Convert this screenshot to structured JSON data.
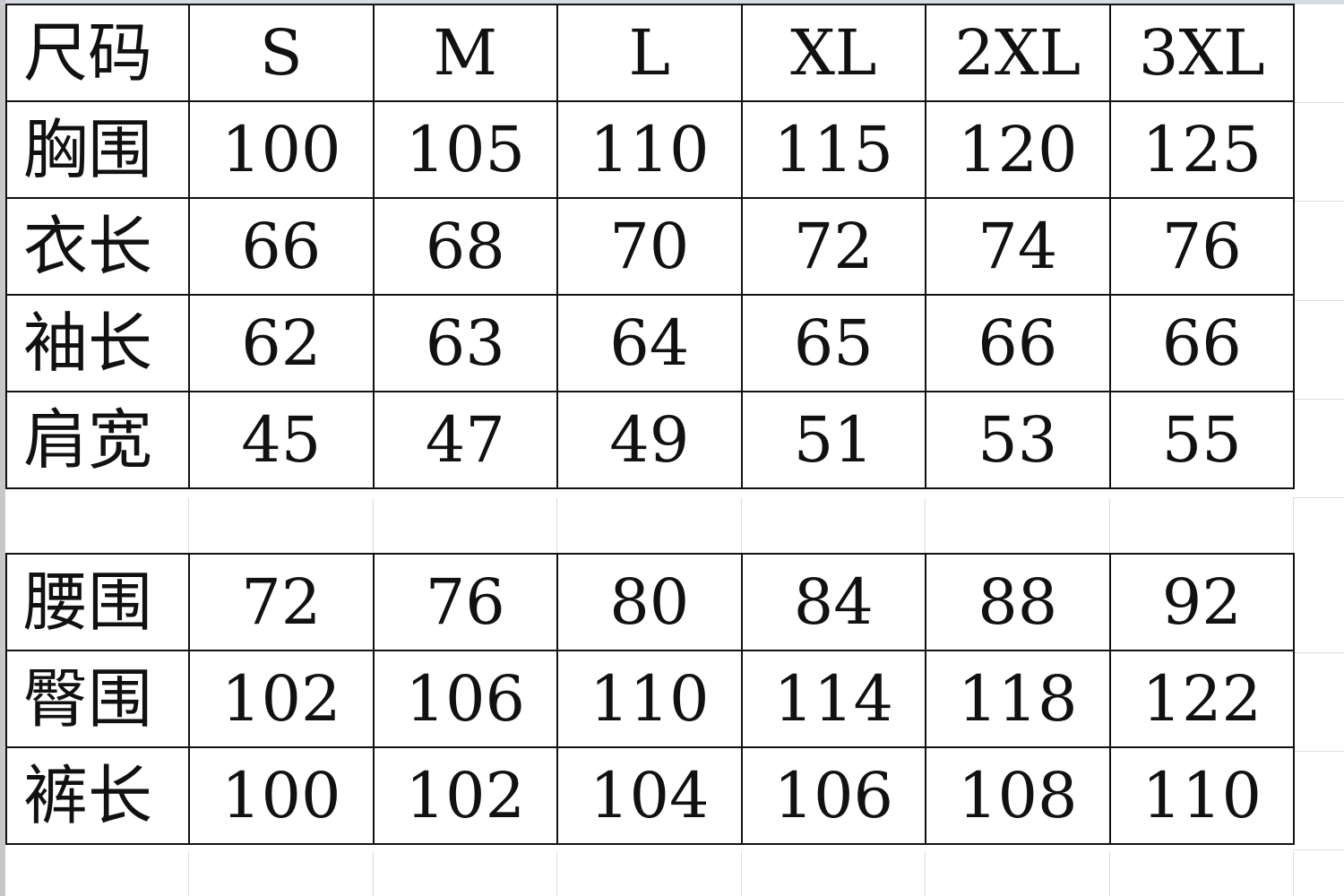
{
  "table1": {
    "header": {
      "label": "尺码",
      "sizes": [
        "S",
        "M",
        "L",
        "XL",
        "2XL",
        "3XL"
      ]
    },
    "rows": [
      {
        "label": "胸围",
        "values": [
          "100",
          "105",
          "110",
          "115",
          "120",
          "125"
        ]
      },
      {
        "label": "衣长",
        "values": [
          "66",
          "68",
          "70",
          "72",
          "74",
          "76"
        ]
      },
      {
        "label": "袖长",
        "values": [
          "62",
          "63",
          "64",
          "65",
          "66",
          "66"
        ]
      },
      {
        "label": "肩宽",
        "values": [
          "45",
          "47",
          "49",
          "51",
          "53",
          "55"
        ]
      }
    ]
  },
  "table2": {
    "rows": [
      {
        "label": "腰围",
        "values": [
          "72",
          "76",
          "80",
          "84",
          "88",
          "92"
        ]
      },
      {
        "label": "臀围",
        "values": [
          "102",
          "106",
          "110",
          "114",
          "118",
          "122"
        ]
      },
      {
        "label": "裤长",
        "values": [
          "100",
          "102",
          "104",
          "106",
          "108",
          "110"
        ]
      }
    ]
  }
}
